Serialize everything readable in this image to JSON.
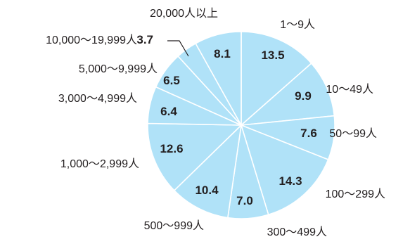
{
  "chart_data": {
    "type": "pie",
    "title": "",
    "unit": "",
    "start": "top",
    "direction": "clockwise",
    "slice_color": "#b0e2f8",
    "categories": [
      "1～9人",
      "10～49人",
      "50～99人",
      "100～299人",
      "300～499人",
      "500～999人",
      "1,000～2,999人",
      "3,000～4,999人",
      "5,000～9,999人",
      "10,000～19,999人",
      "20,000人以上"
    ],
    "values": [
      13.5,
      9.9,
      7.6,
      14.3,
      7.0,
      10.4,
      12.6,
      6.4,
      6.5,
      3.7,
      8.1
    ],
    "value_labels": [
      "13.5",
      "9.9",
      "7.6",
      "14.3",
      "7.0",
      "10.4",
      "12.6",
      "6.4",
      "6.5",
      "3.7",
      "8.1"
    ]
  }
}
